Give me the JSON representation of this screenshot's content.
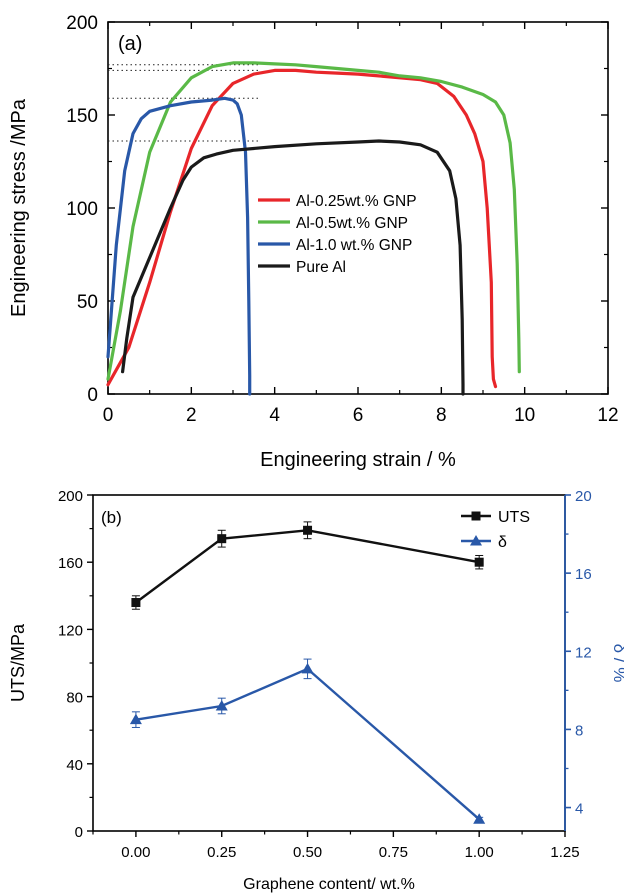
{
  "chart_data": [
    {
      "type": "line",
      "panel_label": "(a)",
      "xlabel": "Engineering strain / %",
      "ylabel": "Engineering stress /MPa",
      "xlim": [
        0,
        12
      ],
      "ylim": [
        0,
        200
      ],
      "xticks": [
        "0",
        "2",
        "4",
        "6",
        "8",
        "10",
        "12"
      ],
      "yticks": [
        "0",
        "50",
        "100",
        "150",
        "200"
      ],
      "legend_position": "center-right",
      "reference_lines": [
        177,
        174,
        159,
        136
      ],
      "series": [
        {
          "name": "Al-0.25wt.% GNP",
          "color": "#e8262a",
          "x": [
            0,
            0.5,
            1.0,
            1.5,
            2.0,
            2.5,
            3.0,
            3.5,
            4.0,
            4.5,
            5.0,
            5.5,
            6.0,
            6.5,
            7.0,
            7.5,
            7.9,
            8.3,
            8.6,
            8.8,
            9.0,
            9.1,
            9.2,
            9.22,
            9.25,
            9.3
          ],
          "y": [
            5,
            25,
            60,
            98,
            132,
            155,
            167,
            172,
            174,
            174,
            173,
            172.5,
            172,
            171,
            170,
            169,
            167,
            160,
            150,
            140,
            125,
            100,
            60,
            20,
            8,
            4
          ]
        },
        {
          "name": "Al-0.5wt.% GNP",
          "color": "#5ab947",
          "x": [
            0,
            0.3,
            0.6,
            1.0,
            1.5,
            2.0,
            2.5,
            3.0,
            3.5,
            4.0,
            4.5,
            5.0,
            5.5,
            6.0,
            6.5,
            7.0,
            7.5,
            8.0,
            8.5,
            9.0,
            9.3,
            9.5,
            9.65,
            9.75,
            9.82,
            9.86,
            9.87
          ],
          "y": [
            8,
            45,
            90,
            130,
            157,
            170,
            176,
            178,
            178,
            177.5,
            177,
            176,
            175,
            174,
            173,
            171,
            170,
            168,
            165,
            161,
            157,
            150,
            135,
            110,
            70,
            30,
            12
          ]
        },
        {
          "name": "Al-1.0 wt.% GNP",
          "color": "#2958a8",
          "x": [
            0,
            0.2,
            0.4,
            0.6,
            0.8,
            1.0,
            1.5,
            2.0,
            2.5,
            2.8,
            3.0,
            3.1,
            3.2,
            3.3,
            3.35,
            3.38,
            3.4,
            3.4
          ],
          "y": [
            20,
            80,
            120,
            140,
            148,
            152,
            155,
            157,
            158,
            159,
            158,
            156,
            150,
            130,
            95,
            50,
            10,
            0
          ]
        },
        {
          "name": "Pure Al",
          "color": "#1a1a1a",
          "x": [
            0.35,
            0.45,
            0.6,
            0.9,
            1.2,
            1.5,
            1.8,
            2.0,
            2.3,
            2.6,
            3.0,
            4.0,
            5.0,
            6.0,
            6.5,
            7.0,
            7.5,
            7.9,
            8.2,
            8.35,
            8.45,
            8.5,
            8.52,
            8.52
          ],
          "y": [
            12,
            30,
            52,
            68,
            84,
            100,
            115,
            122,
            127,
            129,
            131,
            133,
            134.5,
            135.5,
            136,
            135.5,
            134,
            130,
            120,
            105,
            80,
            40,
            5,
            0
          ]
        }
      ]
    },
    {
      "type": "line",
      "panel_label": "(b)",
      "xlabel": "Graphene content/ wt.%",
      "ylabel": "UTS/MPa",
      "y2label": "δ / %",
      "xlim": [
        -0.125,
        1.25
      ],
      "ylim": [
        0,
        200
      ],
      "y2lim": [
        2.8,
        20
      ],
      "xticks": [
        "0.00",
        "0.25",
        "0.50",
        "0.75",
        "1.00",
        "1.25"
      ],
      "yticks": [
        "0",
        "40",
        "80",
        "120",
        "160",
        "200"
      ],
      "y2ticks": [
        "4",
        "8",
        "12",
        "16",
        "20"
      ],
      "legend_position": "top-right",
      "series": [
        {
          "name": "UTS",
          "color": "#111111",
          "marker": "square",
          "axis": "left",
          "x": [
            0,
            0.25,
            0.5,
            1.0
          ],
          "y": [
            136,
            174,
            179,
            160
          ],
          "err": [
            4,
            5,
            5,
            4
          ]
        },
        {
          "name": "δ",
          "color": "#2958a8",
          "marker": "triangle",
          "axis": "right",
          "x": [
            0,
            0.25,
            0.5,
            1.0
          ],
          "y": [
            8.5,
            9.2,
            11.1,
            3.4
          ],
          "err": [
            0.4,
            0.4,
            0.5,
            0.1
          ]
        }
      ]
    }
  ]
}
